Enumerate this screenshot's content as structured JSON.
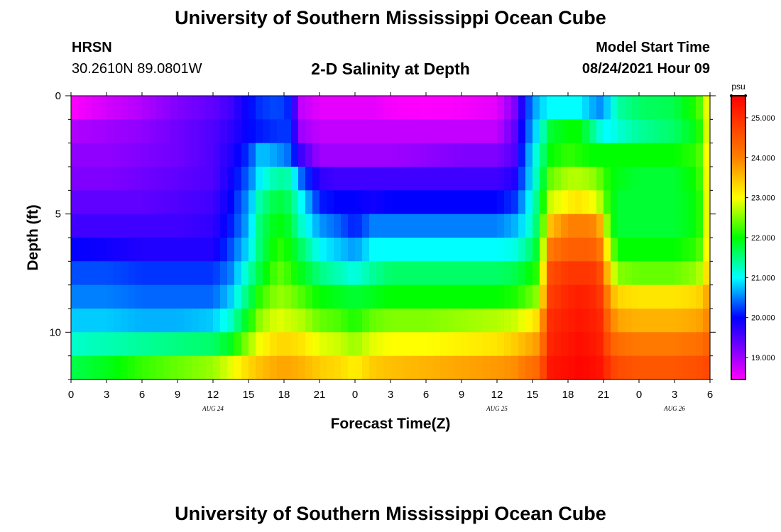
{
  "header": {
    "title": "University of Southern Mississippi Ocean Cube",
    "station": "HRSN",
    "coords": "30.2610N  89.0801W",
    "subtitle": "2-D Salinity at Depth",
    "model_label": "Model Start Time",
    "model_time": "08/24/2021 Hour 09"
  },
  "footer": {
    "title": "University of Southern Mississippi Ocean Cube"
  },
  "chart_data": {
    "type": "heatmap",
    "title": "2-D Salinity at Depth",
    "xlabel": "Forecast Time(Z)",
    "ylabel": "Depth (ft)",
    "x_ticks": [
      "0",
      "3",
      "6",
      "9",
      "12",
      "15",
      "18",
      "21",
      "0",
      "3",
      "6",
      "9",
      "12",
      "15",
      "18",
      "21",
      "0",
      "3",
      "6"
    ],
    "x_hours": [
      0,
      3,
      6,
      9,
      12,
      15,
      18,
      21,
      24,
      27,
      30,
      33,
      36,
      39,
      42,
      45,
      48,
      51,
      54
    ],
    "xlim_hours": [
      0,
      54
    ],
    "date_labels": [
      {
        "label": "AUG  24",
        "hour": 12
      },
      {
        "label": "AUG  25",
        "hour": 36
      },
      {
        "label": "AUG  26",
        "hour": 51
      }
    ],
    "y_ticks": [
      0,
      5,
      10
    ],
    "ylim": [
      12,
      0
    ],
    "colorbar": {
      "unit": "psu",
      "range": [
        18.45,
        25.55
      ],
      "ticks": [
        "19.000",
        "20.000",
        "21.000",
        "22.000",
        "23.000",
        "24.000",
        "25.000"
      ],
      "tick_values": [
        19,
        20,
        21,
        22,
        23,
        24,
        25
      ],
      "colors": [
        "#ff00ff",
        "#a000ff",
        "#0000ff",
        "#00ffff",
        "#00ff00",
        "#ffff00",
        "#ff8000",
        "#ff0000"
      ],
      "color_stops": [
        18.45,
        19.0,
        20.0,
        21.0,
        22.0,
        23.0,
        24.0,
        25.55
      ]
    },
    "depth_levels": [
      0.5,
      1.5,
      2.5,
      3.5,
      4.5,
      5.5,
      6.5,
      7.5,
      8.5,
      9.5,
      10.5,
      11.5
    ],
    "time_keys": [
      0,
      3,
      6,
      9,
      12,
      13.5,
      15,
      16,
      17.5,
      18.5,
      19.5,
      21,
      22.5,
      24,
      25.5,
      27,
      30,
      33,
      36,
      37.5,
      38.5,
      39.5,
      40.5,
      42,
      43,
      44,
      45,
      45.5,
      46.5,
      48,
      51,
      53,
      54
    ],
    "salinity": [
      [
        18.45,
        18.7,
        18.9,
        19.2,
        19.4,
        19.6,
        20.0,
        20.2,
        20.3,
        20.1,
        18.8,
        18.6,
        18.6,
        18.6,
        18.6,
        18.5,
        18.45,
        18.5,
        18.6,
        19.2,
        20.2,
        20.8,
        21.0,
        21.0,
        21.0,
        20.7,
        20.5,
        21.0,
        21.4,
        21.6,
        21.7,
        22.2,
        23.2
      ],
      [
        18.9,
        19.0,
        19.1,
        19.3,
        19.5,
        19.7,
        20.0,
        20.1,
        20.2,
        20.2,
        19.0,
        18.8,
        18.8,
        18.8,
        18.8,
        18.8,
        18.8,
        18.8,
        18.8,
        19.4,
        20.3,
        21.0,
        21.8,
        22.0,
        22.0,
        21.5,
        21.0,
        21.0,
        21.2,
        21.4,
        21.6,
        22.0,
        23.2
      ],
      [
        19.1,
        19.1,
        19.2,
        19.3,
        19.5,
        19.8,
        20.2,
        20.8,
        20.6,
        20.4,
        19.6,
        19.0,
        19.0,
        19.0,
        19.0,
        19.0,
        19.1,
        19.2,
        19.2,
        19.5,
        20.5,
        21.3,
        22.0,
        22.2,
        22.1,
        22.0,
        22.0,
        22.0,
        22.0,
        22.0,
        22.0,
        22.2,
        23.3
      ],
      [
        19.2,
        19.2,
        19.3,
        19.4,
        19.5,
        19.9,
        20.4,
        21.0,
        21.4,
        21.3,
        20.4,
        19.7,
        19.6,
        19.6,
        19.6,
        19.6,
        19.6,
        19.6,
        19.6,
        19.8,
        20.6,
        21.4,
        22.4,
        22.7,
        22.7,
        22.6,
        22.3,
        22.0,
        21.9,
        21.8,
        21.8,
        22.1,
        23.3
      ],
      [
        19.4,
        19.4,
        19.4,
        19.5,
        19.6,
        20.0,
        20.6,
        21.4,
        21.8,
        21.6,
        21.0,
        20.1,
        20.0,
        20.0,
        19.9,
        20.0,
        20.0,
        20.0,
        20.0,
        20.2,
        20.8,
        21.6,
        22.8,
        23.1,
        23.2,
        23.0,
        22.6,
        22.0,
        21.8,
        21.8,
        21.8,
        22.0,
        23.3
      ],
      [
        19.6,
        19.6,
        19.6,
        19.6,
        19.7,
        20.1,
        20.7,
        21.6,
        22.0,
        21.8,
        21.2,
        20.6,
        20.4,
        20.1,
        20.5,
        20.5,
        20.5,
        20.5,
        20.5,
        20.7,
        21.0,
        21.7,
        23.5,
        24.0,
        24.0,
        24.0,
        23.5,
        22.0,
        21.8,
        21.8,
        21.8,
        22.0,
        23.3
      ],
      [
        20.0,
        19.9,
        19.8,
        19.8,
        19.8,
        20.3,
        20.9,
        21.6,
        22.2,
        22.0,
        21.6,
        21.0,
        20.8,
        20.6,
        21.0,
        21.0,
        21.0,
        21.0,
        21.0,
        21.1,
        21.4,
        21.9,
        24.1,
        24.4,
        24.4,
        24.4,
        24.0,
        22.5,
        22.0,
        22.0,
        22.0,
        22.2,
        23.3
      ],
      [
        20.3,
        20.3,
        20.2,
        20.2,
        20.2,
        20.5,
        21.3,
        21.8,
        22.4,
        22.2,
        21.9,
        21.5,
        21.3,
        21.1,
        21.4,
        21.6,
        21.6,
        21.6,
        21.6,
        21.7,
        21.9,
        22.2,
        24.6,
        24.9,
        24.9,
        24.9,
        24.5,
        23.0,
        22.5,
        22.4,
        22.4,
        22.6,
        23.5
      ],
      [
        20.5,
        20.5,
        20.4,
        20.4,
        20.4,
        20.8,
        21.6,
        22.2,
        22.6,
        22.5,
        22.3,
        22.0,
        21.9,
        21.8,
        21.9,
        22.0,
        22.0,
        22.0,
        22.0,
        22.1,
        22.3,
        22.6,
        24.8,
        25.1,
        25.2,
        25.1,
        24.8,
        23.6,
        23.3,
        23.2,
        23.2,
        23.3,
        23.8
      ],
      [
        20.8,
        20.8,
        20.7,
        20.7,
        20.8,
        21.2,
        22.0,
        22.6,
        22.9,
        22.8,
        22.7,
        22.4,
        22.3,
        22.1,
        22.4,
        22.5,
        22.5,
        22.6,
        22.7,
        22.8,
        23.0,
        23.3,
        25.0,
        25.2,
        25.3,
        25.2,
        25.0,
        24.0,
        23.7,
        23.6,
        23.6,
        23.7,
        24.0
      ],
      [
        21.2,
        21.3,
        21.4,
        21.5,
        21.6,
        21.9,
        22.6,
        23.0,
        23.3,
        23.3,
        23.2,
        22.9,
        22.8,
        22.6,
        22.9,
        23.0,
        23.0,
        23.1,
        23.2,
        23.4,
        23.6,
        23.8,
        25.1,
        25.3,
        25.4,
        25.3,
        25.1,
        24.4,
        24.2,
        24.1,
        24.1,
        24.2,
        24.4
      ],
      [
        21.7,
        21.9,
        22.2,
        22.4,
        22.6,
        22.9,
        23.3,
        23.5,
        23.7,
        23.7,
        23.6,
        23.4,
        23.3,
        23.1,
        23.4,
        23.5,
        23.6,
        23.7,
        23.8,
        23.9,
        24.1,
        24.3,
        25.3,
        25.4,
        25.5,
        25.4,
        25.3,
        24.8,
        24.6,
        24.5,
        24.5,
        24.6,
        24.7
      ]
    ]
  }
}
